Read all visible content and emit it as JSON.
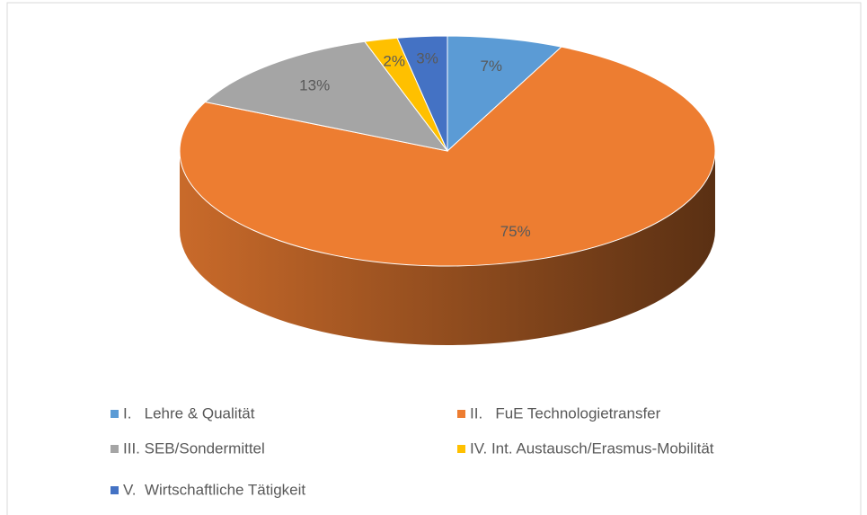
{
  "chart_data": {
    "type": "pie",
    "categories": [
      "I.   Lehre & Qualität",
      "II.   FuE Technologietransfer",
      "III. SEB/Sondermittel",
      "IV. Int. Austausch/Erasmus-Mobilität",
      "V.  Wirtschaftliche Tätigkeit"
    ],
    "values": [
      7,
      75,
      13,
      2,
      3
    ],
    "value_labels": [
      "7%",
      "75%",
      "13%",
      "2%",
      "3%"
    ],
    "colors": [
      "#5b9bd5",
      "#ed7d31",
      "#a5a5a5",
      "#ffc000",
      "#4472c4"
    ],
    "legend": "bottom"
  }
}
